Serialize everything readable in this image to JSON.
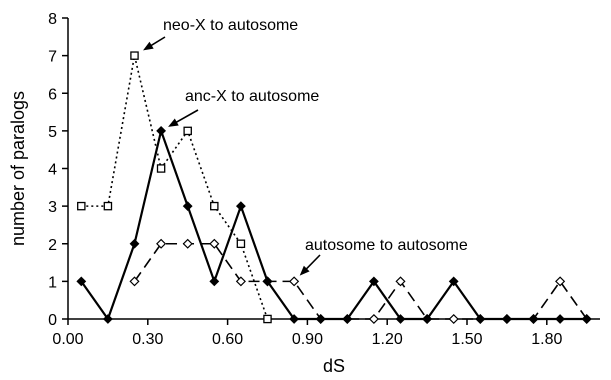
{
  "chart_data": {
    "type": "line",
    "title": "",
    "xlabel": "dS",
    "ylabel": "number of paralogs",
    "xlim": [
      0,
      2.0
    ],
    "ylim": [
      0,
      8
    ],
    "x_tick_labels": [
      "0.00",
      "0.30",
      "0.60",
      "0.90",
      "1.20",
      "1.50",
      "1.80"
    ],
    "x_tick_values": [
      0.0,
      0.3,
      0.6,
      0.9,
      1.2,
      1.5,
      1.8
    ],
    "y_tick_labels": [
      "0",
      "1",
      "2",
      "3",
      "4",
      "5",
      "6",
      "7",
      "8"
    ],
    "y_tick_values": [
      0,
      1,
      2,
      3,
      4,
      5,
      6,
      7,
      8
    ],
    "grid": false,
    "legend": "none",
    "series": [
      {
        "key": "neoX",
        "style": "dotted",
        "marker": "open-square",
        "color": "#000000",
        "points": [
          [
            0.05,
            3
          ],
          [
            0.15,
            3
          ],
          [
            0.25,
            7
          ],
          [
            0.35,
            4
          ],
          [
            0.45,
            5
          ],
          [
            0.55,
            3
          ],
          [
            0.65,
            2
          ],
          [
            0.75,
            0
          ]
        ]
      },
      {
        "key": "ancX",
        "style": "solid",
        "marker": "filled-diamond",
        "color": "#000000",
        "points": [
          [
            0.05,
            1
          ],
          [
            0.15,
            0
          ],
          [
            0.25,
            2
          ],
          [
            0.35,
            5
          ],
          [
            0.45,
            3
          ],
          [
            0.55,
            1
          ],
          [
            0.65,
            3
          ],
          [
            0.75,
            1
          ],
          [
            0.85,
            0
          ],
          [
            0.95,
            0
          ],
          [
            1.05,
            0
          ],
          [
            1.15,
            1
          ],
          [
            1.25,
            0
          ],
          [
            1.35,
            0
          ],
          [
            1.45,
            1
          ],
          [
            1.55,
            0
          ],
          [
            1.65,
            0
          ],
          [
            1.75,
            0
          ],
          [
            1.85,
            0
          ],
          [
            1.95,
            0
          ]
        ]
      },
      {
        "key": "autoAuto",
        "style": "dashed",
        "marker": "open-diamond",
        "color": "#000000",
        "points": [
          [
            0.25,
            1
          ],
          [
            0.35,
            2
          ],
          [
            0.45,
            2
          ],
          [
            0.55,
            2
          ],
          [
            0.65,
            1
          ],
          [
            0.75,
            1
          ],
          [
            0.85,
            1
          ],
          [
            0.95,
            0
          ],
          [
            1.05,
            0
          ],
          [
            1.15,
            0
          ],
          [
            1.25,
            1
          ],
          [
            1.35,
            0
          ],
          [
            1.45,
            0
          ],
          [
            1.55,
            0
          ],
          [
            1.65,
            0
          ],
          [
            1.75,
            0
          ],
          [
            1.85,
            1
          ],
          [
            1.95,
            0
          ]
        ]
      }
    ],
    "annotations": [
      {
        "key": "neoX",
        "text": "neo-X to autosome",
        "point": [
          0.25,
          7
        ]
      },
      {
        "key": "ancX",
        "text": "anc-X to autosome",
        "point": [
          0.35,
          5
        ]
      },
      {
        "key": "autoAuto",
        "text": "autosome to autosome",
        "point": [
          0.85,
          1
        ]
      }
    ]
  }
}
